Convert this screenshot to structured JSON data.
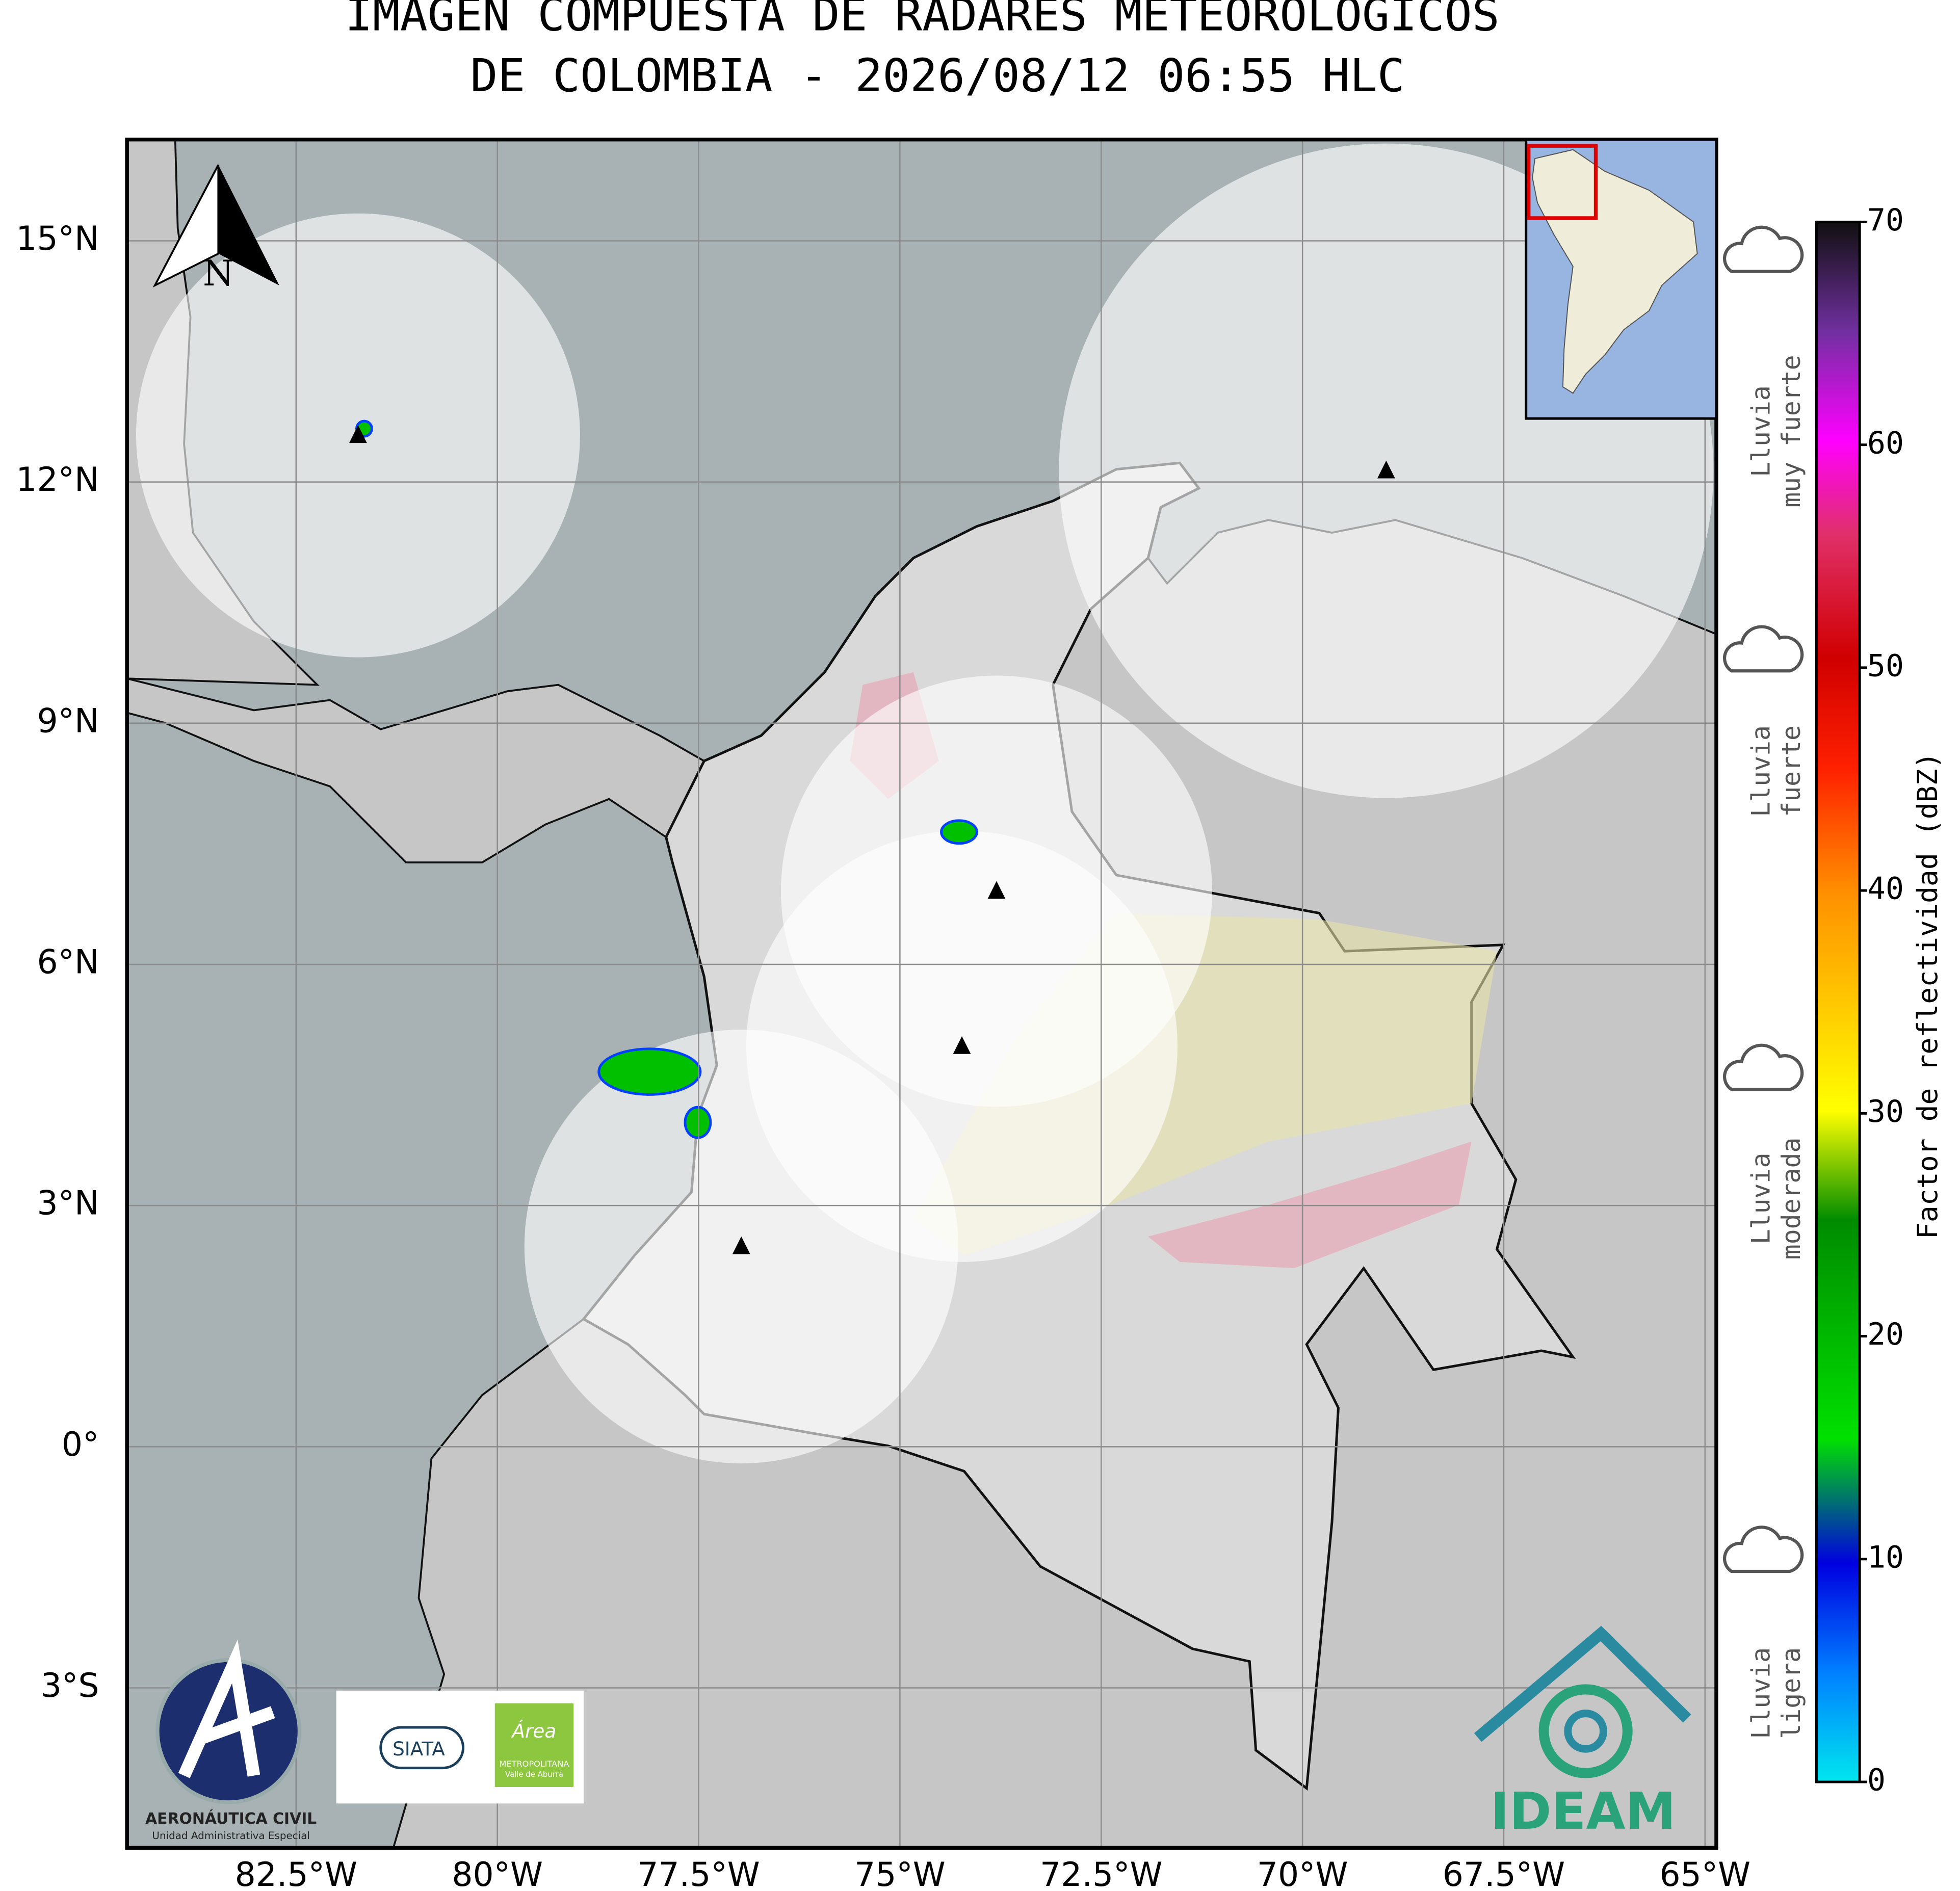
{
  "title": [
    "IMAGEN COMPUESTA DE RADARES METEOROLOGICOS",
    "DE COLOMBIA - 2026/08/12 06:55 HLC"
  ],
  "map": {
    "xlim": [
      -84.6,
      -64.86
    ],
    "ylim": [
      -4.99,
      16.26
    ],
    "xticks": [
      {
        "value": -82.5,
        "label": "82.5°W"
      },
      {
        "value": -80,
        "label": "80°W"
      },
      {
        "value": -77.5,
        "label": "77.5°W"
      },
      {
        "value": -75,
        "label": "75°W"
      },
      {
        "value": -72.5,
        "label": "72.5°W"
      },
      {
        "value": -70,
        "label": "70°W"
      },
      {
        "value": -67.5,
        "label": "67.5°W"
      },
      {
        "value": -65,
        "label": "65°W"
      }
    ],
    "yticks": [
      {
        "value": -3,
        "label": "3°S"
      },
      {
        "value": 0,
        "label": "0°"
      },
      {
        "value": 3,
        "label": "3°N"
      },
      {
        "value": 6,
        "label": "6°N"
      },
      {
        "value": 9,
        "label": "9°N"
      },
      {
        "value": 12,
        "label": "12°N"
      },
      {
        "value": 15,
        "label": "15°N"
      }
    ],
    "radars": [
      {
        "lon": -81.73,
        "lat": 12.58
      },
      {
        "lon": -73.8,
        "lat": 6.91
      },
      {
        "lon": -74.23,
        "lat": 4.98
      },
      {
        "lon": -76.97,
        "lat": 2.49
      },
      {
        "lon": -68.96,
        "lat": 12.14
      }
    ],
    "north_label": "N"
  },
  "colorbar": {
    "label": "Factor de reflectividad (dBZ)",
    "ylim": [
      0,
      70
    ],
    "ticks": [
      0,
      10,
      20,
      30,
      40,
      50,
      60,
      70
    ]
  },
  "rain_labels": [
    [
      "Lluvia",
      "muy fuerte"
    ],
    [
      "Lluvia",
      "fuerte"
    ],
    [
      "Lluvia",
      "moderada"
    ],
    [
      "Lluvia",
      "ligera"
    ]
  ],
  "logos": {
    "aerocivil": [
      "AERONÁUTICA CIVIL",
      "Unidad Administrativa Especial"
    ],
    "siata": "SIATA",
    "area": [
      "Área",
      "METROPOLITANA",
      "Valle de Aburrá"
    ],
    "ideam": "IDEAM"
  }
}
